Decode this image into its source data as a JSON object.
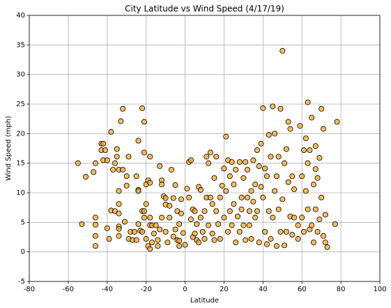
{
  "chart_data": {
    "type": "scatter",
    "title": "City Latitude vs Wind Speed (4/17/19)",
    "xlabel": "Latitude",
    "ylabel": "Wind Speed (mph)",
    "xlim": [
      -80,
      100
    ],
    "xticks": [
      -80,
      -60,
      -40,
      -20,
      0,
      20,
      40,
      60,
      80,
      100
    ],
    "ylim": [
      -5,
      40
    ],
    "yticks": [
      -5,
      0,
      5,
      10,
      15,
      20,
      25,
      30,
      35,
      40
    ],
    "grid": true,
    "color": "#f5a623",
    "edgecolor": "#000000",
    "x": [
      -55,
      -53,
      -51,
      -47,
      -46,
      -46,
      -46,
      -46,
      -46,
      -43,
      -43,
      -42,
      -42,
      -41,
      -40,
      -40,
      -39,
      -38,
      -38,
      -37,
      -36,
      -36,
      -35,
      -35,
      -34,
      -34,
      -34,
      -34,
      -34,
      -34,
      -34,
      -33,
      -32,
      -32,
      -31,
      -30,
      -30,
      -29,
      -29,
      -28,
      -27,
      -26,
      -25,
      -25,
      -24,
      -24,
      -24,
      -24,
      -23,
      -22,
      -22,
      -22,
      -21,
      -21,
      -21,
      -21,
      -20,
      -20,
      -20,
      -19,
      -19,
      -18,
      -18,
      -18,
      -18,
      -18,
      -17,
      -17,
      -16,
      -15,
      -14,
      -14,
      -13,
      -13,
      -12,
      -12,
      -12,
      -11,
      -10,
      -10,
      -10,
      -9,
      -8,
      -8,
      -7,
      -6,
      -6,
      -5,
      -5,
      -4,
      -4,
      -3,
      -3,
      -3,
      -2,
      -2,
      -1,
      0,
      1,
      2,
      2,
      3,
      3,
      4,
      4,
      5,
      5,
      6,
      6,
      7,
      7,
      8,
      8,
      9,
      10,
      10,
      11,
      11,
      12,
      12,
      13,
      13,
      14,
      14,
      15,
      15,
      16,
      16,
      17,
      18,
      18,
      19,
      20,
      20,
      21,
      21,
      22,
      22,
      23,
      23,
      24,
      24,
      25,
      25,
      26,
      26,
      27,
      28,
      28,
      29,
      29,
      30,
      30,
      31,
      31,
      32,
      32,
      33,
      33,
      34,
      34,
      35,
      35,
      36,
      36,
      37,
      37,
      38,
      38,
      39,
      39,
      40,
      40,
      41,
      41,
      42,
      42,
      43,
      43,
      44,
      44,
      45,
      45,
      46,
      46,
      47,
      47,
      48,
      48,
      49,
      49,
      50,
      50,
      51,
      51,
      52,
      52,
      53,
      53,
      54,
      54,
      55,
      55,
      56,
      56,
      58,
      58,
      59,
      60,
      60,
      61,
      61,
      62,
      62,
      63,
      63,
      63,
      64,
      64,
      65,
      65,
      66,
      66,
      67,
      67,
      67,
      68,
      68,
      69,
      69,
      70,
      70,
      71,
      71,
      72,
      72,
      73,
      77,
      78
    ],
    "values": [
      15,
      4.7,
      12.7,
      13.5,
      15,
      5.8,
      4.6,
      1,
      2.7,
      18.3,
      17.2,
      18.3,
      15.5,
      17.2,
      15.5,
      4,
      2.2,
      20.3,
      7,
      13.9,
      15,
      6.9,
      17.4,
      16.1,
      13.9,
      10.3,
      8.1,
      6.5,
      4.3,
      3.9,
      2.7,
      22.1,
      24.2,
      13.9,
      5.1,
      12.8,
      11.2,
      16.1,
      2.2,
      3.4,
      2,
      3.4,
      12.8,
      2,
      10.5,
      10.3,
      18.8,
      4.7,
      3.6,
      24.3,
      6.9,
      3.4,
      22,
      16.8,
      6.9,
      5.8,
      11.4,
      8.1,
      2.2,
      12.1,
      1,
      16.1,
      11.7,
      5.8,
      4.5,
      0.5,
      4.5,
      1.6,
      3.1,
      4.5,
      2,
      1,
      14.5,
      3.8,
      12.1,
      11.4,
      5.8,
      9.4,
      9.1,
      8,
      3.4,
      1.6,
      7.8,
      5.8,
      13.9,
      9.1,
      2.6,
      11.3,
      3.8,
      6.9,
      2,
      1,
      4.7,
      1.9,
      8.9,
      6.5,
      3.2,
      1.2,
      10.7,
      15.2,
      9.2,
      15.5,
      5.5,
      2.5,
      7.2,
      6.9,
      3.1,
      4.7,
      2,
      1.6,
      11,
      10.5,
      5.8,
      3.4,
      6.9,
      2.2,
      16.1,
      9.2,
      15,
      4.5,
      16.8,
      9.2,
      8.1,
      3.1,
      12.5,
      2,
      16.1,
      6.9,
      4.7,
      9.2,
      2.2,
      11.2,
      5.8,
      14.1,
      19.5,
      10.3,
      15.5,
      3.4,
      12.8,
      6.9,
      15.2,
      4.5,
      11.4,
      8.1,
      13.9,
      1.6,
      6,
      15.2,
      3.4,
      9.2,
      7.2,
      12.5,
      4.5,
      15.2,
      2,
      9.2,
      13.9,
      6.9,
      4.5,
      10.3,
      2.2,
      8.5,
      15.5,
      11.4,
      5.8,
      17.2,
      6.9,
      14.5,
      1.6,
      18.3,
      11,
      24.3,
      9.2,
      14.1,
      3.4,
      12.8,
      1.3,
      19.8,
      6.9,
      16.1,
      2.2,
      24.6,
      5.8,
      20,
      10.3,
      12.8,
      1,
      16.1,
      7.2,
      24.2,
      3.4,
      34,
      8.9,
      15,
      1.1,
      17.4,
      3.4,
      11.8,
      22,
      20.8,
      6,
      12.8,
      2.9,
      5.8,
      10.6,
      4.5,
      2.2,
      21.3,
      12.8,
      5.8,
      17.2,
      3.4,
      19.2,
      10.3,
      25.3,
      7.2,
      15,
      17.2,
      3.8,
      22.7,
      4.5,
      11.4,
      1.6,
      17.9,
      7.2,
      14,
      12.5,
      3.4,
      15.9,
      5.5,
      24.2,
      9.2,
      20.8,
      2.7,
      6.3,
      1.6,
      0.8,
      4.7,
      22
    ]
  }
}
